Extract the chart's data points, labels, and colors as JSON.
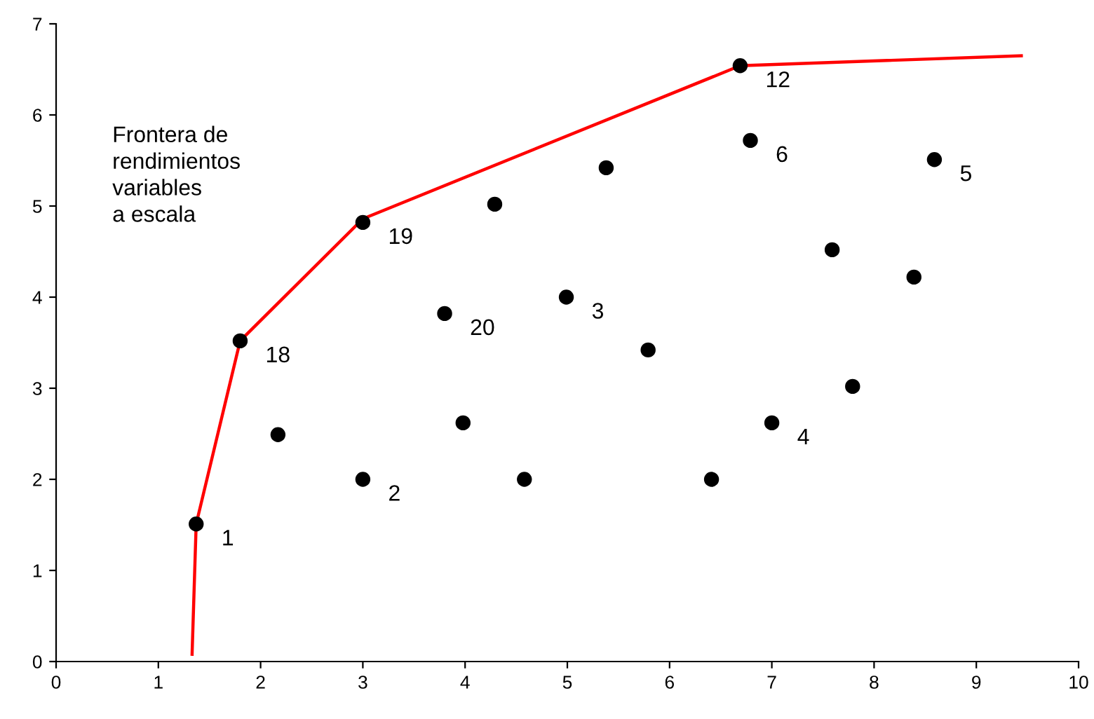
{
  "chart_data": {
    "type": "scatter",
    "xlim": [
      0,
      10
    ],
    "ylim": [
      0,
      7
    ],
    "xticks": [
      0,
      1,
      2,
      3,
      4,
      5,
      6,
      7,
      8,
      9,
      10
    ],
    "yticks": [
      0,
      1,
      2,
      3,
      4,
      5,
      6,
      7
    ],
    "grid": false,
    "legend": false,
    "series": [
      {
        "type": "line",
        "color": "#ff0000",
        "marker": "none",
        "line_style": "solid",
        "x": [
          1.33,
          1.37,
          1.8,
          3.0,
          6.69,
          9.44
        ],
        "values": [
          0.08,
          1.51,
          3.52,
          4.86,
          6.54,
          6.65
        ]
      },
      {
        "color": "#000000",
        "marker": "circle",
        "x": [
          1.37,
          1.8,
          2.17,
          3.0,
          3.0,
          3.8,
          3.98,
          4.29,
          4.58,
          4.99,
          5.38,
          5.79,
          6.41,
          6.69,
          6.79,
          7.0,
          7.59,
          7.79,
          8.39,
          8.59
        ],
        "values": [
          1.51,
          3.52,
          2.49,
          2.0,
          4.82,
          3.82,
          2.62,
          5.02,
          2.0,
          4.0,
          5.42,
          3.42,
          2.0,
          6.54,
          5.72,
          2.62,
          4.52,
          3.02,
          4.22,
          5.51
        ]
      }
    ],
    "annotations": [
      "Frontera de\nrendimientos\nvariables\na escala",
      {
        "text": "1",
        "x": 1.37,
        "y": 1.51
      },
      {
        "text": "18",
        "x": 1.8,
        "y": 3.52
      },
      {
        "text": "2",
        "x": 3.0,
        "y": 2.0
      },
      {
        "text": "19",
        "x": 3.0,
        "y": 4.82
      },
      {
        "text": "20",
        "x": 3.8,
        "y": 3.82
      },
      {
        "text": "3",
        "x": 4.99,
        "y": 4.0
      },
      {
        "text": "12",
        "x": 6.69,
        "y": 6.54
      },
      {
        "text": "6",
        "x": 6.79,
        "y": 5.72
      },
      {
        "text": "4",
        "x": 7.0,
        "y": 2.62
      },
      {
        "text": "5",
        "x": 8.59,
        "y": 5.51
      }
    ]
  }
}
